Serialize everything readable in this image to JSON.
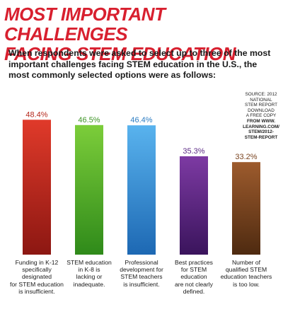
{
  "header": {
    "title_lines": [
      "MOST IMPORTANT CHALLENGES",
      "FACING STEM EDUCATION"
    ],
    "subtitle": "When respondents were asked to select up to three of the most important challenges facing STEM education in the U.S., the most commonly selected options were as follows:",
    "source_lines": [
      "SOURCE: 2012",
      "NATIONAL",
      "STEM REPORT",
      "DOWNLOAD",
      "A FREE COPY",
      "FROM WWW.",
      "LEARNING.COM/",
      "STEM/2012-",
      "STEM-REPORT"
    ]
  },
  "chart_data": {
    "type": "bar",
    "title": "MOST IMPORTANT CHALLENGES FACING STEM EDUCATION",
    "xlabel": "",
    "ylabel": "",
    "ylim": [
      0,
      50
    ],
    "grid": false,
    "categories": [
      [
        "Funding in K-12",
        "specifically",
        "designated",
        "for STEM education",
        "is insufficient."
      ],
      [
        "STEM education",
        "in K-8 is",
        "lacking or",
        "inadequate."
      ],
      [
        "Professional",
        "development for",
        "STEM teachers",
        "is insufficient."
      ],
      [
        "Best practices",
        "for STEM",
        "education",
        "are not clearly",
        "defined."
      ],
      [
        "Number of",
        "qualified STEM",
        "education teachers",
        "is too low."
      ]
    ],
    "values": [
      48.4,
      46.5,
      46.4,
      35.3,
      33.2
    ],
    "value_labels": [
      "48.4%",
      "46.5%",
      "46.4%",
      "35.3%",
      "33.2%"
    ],
    "colors": [
      {
        "top": "#e03a2a",
        "bottom": "#8c1712",
        "label": "#b5281c"
      },
      {
        "top": "#7ccd3a",
        "bottom": "#2f8a1a",
        "label": "#3e9426"
      },
      {
        "top": "#59b3ee",
        "bottom": "#1d68b3",
        "label": "#2b7cc2"
      },
      {
        "top": "#7d3aa3",
        "bottom": "#3a145c",
        "label": "#5c2a86"
      },
      {
        "top": "#9d5b2d",
        "bottom": "#4e2a10",
        "label": "#7a4420"
      }
    ]
  }
}
